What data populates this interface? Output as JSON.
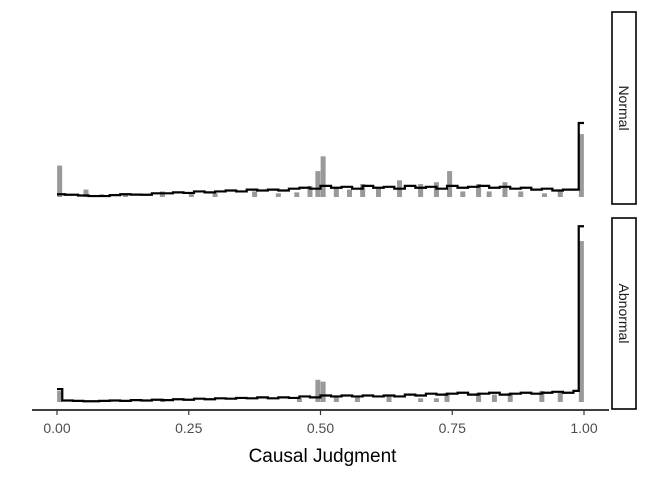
{
  "chart_data": {
    "type": "histogram",
    "xlabel": "Causal Judgment",
    "xlim": [
      0,
      1
    ],
    "x_ticks": [
      {
        "value": 0.0,
        "label": "0.00"
      },
      {
        "value": 0.25,
        "label": "0.25"
      },
      {
        "value": 0.5,
        "label": "0.50"
      },
      {
        "value": 0.75,
        "label": "0.75"
      },
      {
        "value": 1.0,
        "label": "1.00"
      }
    ],
    "y_axis_shown": false,
    "colors": {
      "bars": "#999999",
      "step_line": "#000000",
      "strip_border": "#000000"
    },
    "panels": [
      {
        "label": "Normal",
        "ylim": [
          0,
          1
        ],
        "bars": [
          [
            0.005,
            0.17
          ],
          [
            0.055,
            0.04
          ],
          [
            0.085,
            0.015
          ],
          [
            0.13,
            0.02
          ],
          [
            0.2,
            0.03
          ],
          [
            0.255,
            0.025
          ],
          [
            0.3,
            0.02
          ],
          [
            0.375,
            0.03
          ],
          [
            0.42,
            0.02
          ],
          [
            0.455,
            0.025
          ],
          [
            0.48,
            0.06
          ],
          [
            0.495,
            0.14
          ],
          [
            0.505,
            0.22
          ],
          [
            0.53,
            0.05
          ],
          [
            0.555,
            0.04
          ],
          [
            0.58,
            0.07
          ],
          [
            0.61,
            0.05
          ],
          [
            0.65,
            0.09
          ],
          [
            0.69,
            0.07
          ],
          [
            0.72,
            0.08
          ],
          [
            0.745,
            0.14
          ],
          [
            0.77,
            0.03
          ],
          [
            0.8,
            0.07
          ],
          [
            0.82,
            0.03
          ],
          [
            0.85,
            0.08
          ],
          [
            0.88,
            0.03
          ],
          [
            0.925,
            0.02
          ],
          [
            0.955,
            0.03
          ],
          [
            0.995,
            0.34
          ]
        ],
        "step": [
          [
            0.0,
            0.015
          ],
          [
            0.005,
            0.015
          ],
          [
            0.01,
            0.015
          ],
          [
            0.015,
            0.012
          ],
          [
            0.04,
            0.008
          ],
          [
            0.06,
            0.005
          ],
          [
            0.08,
            0.005
          ],
          [
            0.1,
            0.01
          ],
          [
            0.12,
            0.015
          ],
          [
            0.14,
            0.013
          ],
          [
            0.16,
            0.012
          ],
          [
            0.18,
            0.02
          ],
          [
            0.2,
            0.02
          ],
          [
            0.22,
            0.025
          ],
          [
            0.24,
            0.022
          ],
          [
            0.26,
            0.03
          ],
          [
            0.28,
            0.025
          ],
          [
            0.3,
            0.03
          ],
          [
            0.32,
            0.035
          ],
          [
            0.34,
            0.03
          ],
          [
            0.36,
            0.04
          ],
          [
            0.38,
            0.035
          ],
          [
            0.4,
            0.04
          ],
          [
            0.42,
            0.035
          ],
          [
            0.44,
            0.045
          ],
          [
            0.46,
            0.05
          ],
          [
            0.48,
            0.045
          ],
          [
            0.5,
            0.06
          ],
          [
            0.52,
            0.05
          ],
          [
            0.54,
            0.055
          ],
          [
            0.56,
            0.045
          ],
          [
            0.58,
            0.06
          ],
          [
            0.6,
            0.05
          ],
          [
            0.62,
            0.055
          ],
          [
            0.64,
            0.045
          ],
          [
            0.66,
            0.06
          ],
          [
            0.68,
            0.05
          ],
          [
            0.7,
            0.055
          ],
          [
            0.72,
            0.045
          ],
          [
            0.74,
            0.06
          ],
          [
            0.76,
            0.05
          ],
          [
            0.78,
            0.055
          ],
          [
            0.8,
            0.06
          ],
          [
            0.82,
            0.05
          ],
          [
            0.84,
            0.055
          ],
          [
            0.86,
            0.045
          ],
          [
            0.88,
            0.05
          ],
          [
            0.9,
            0.04
          ],
          [
            0.92,
            0.045
          ],
          [
            0.94,
            0.035
          ],
          [
            0.96,
            0.04
          ],
          [
            0.98,
            0.04
          ],
          [
            0.99,
            0.4
          ],
          [
            1.0,
            0.4
          ]
        ]
      },
      {
        "label": "Abnormal",
        "ylim": [
          0,
          1
        ],
        "bars": [
          [
            0.005,
            0.06
          ],
          [
            0.2,
            0.01
          ],
          [
            0.46,
            0.02
          ],
          [
            0.495,
            0.12
          ],
          [
            0.505,
            0.11
          ],
          [
            0.53,
            0.03
          ],
          [
            0.57,
            0.03
          ],
          [
            0.63,
            0.04
          ],
          [
            0.69,
            0.02
          ],
          [
            0.72,
            0.02
          ],
          [
            0.74,
            0.05
          ],
          [
            0.8,
            0.05
          ],
          [
            0.83,
            0.04
          ],
          [
            0.86,
            0.05
          ],
          [
            0.92,
            0.06
          ],
          [
            0.955,
            0.05
          ],
          [
            0.995,
            0.87
          ]
        ],
        "step": [
          [
            0.0,
            0.07
          ],
          [
            0.005,
            0.07
          ],
          [
            0.01,
            0.008
          ],
          [
            0.03,
            0.006
          ],
          [
            0.05,
            0.004
          ],
          [
            0.08,
            0.006
          ],
          [
            0.1,
            0.008
          ],
          [
            0.12,
            0.006
          ],
          [
            0.14,
            0.01
          ],
          [
            0.16,
            0.008
          ],
          [
            0.18,
            0.012
          ],
          [
            0.2,
            0.01
          ],
          [
            0.22,
            0.015
          ],
          [
            0.24,
            0.012
          ],
          [
            0.26,
            0.018
          ],
          [
            0.28,
            0.015
          ],
          [
            0.3,
            0.02
          ],
          [
            0.32,
            0.018
          ],
          [
            0.34,
            0.022
          ],
          [
            0.36,
            0.02
          ],
          [
            0.38,
            0.025
          ],
          [
            0.4,
            0.02
          ],
          [
            0.42,
            0.025
          ],
          [
            0.44,
            0.022
          ],
          [
            0.46,
            0.03
          ],
          [
            0.48,
            0.025
          ],
          [
            0.5,
            0.035
          ],
          [
            0.52,
            0.03
          ],
          [
            0.54,
            0.035
          ],
          [
            0.56,
            0.03
          ],
          [
            0.58,
            0.035
          ],
          [
            0.6,
            0.03
          ],
          [
            0.62,
            0.035
          ],
          [
            0.64,
            0.03
          ],
          [
            0.66,
            0.04
          ],
          [
            0.68,
            0.035
          ],
          [
            0.7,
            0.045
          ],
          [
            0.72,
            0.04
          ],
          [
            0.74,
            0.045
          ],
          [
            0.76,
            0.05
          ],
          [
            0.78,
            0.04
          ],
          [
            0.8,
            0.045
          ],
          [
            0.82,
            0.05
          ],
          [
            0.84,
            0.04
          ],
          [
            0.86,
            0.045
          ],
          [
            0.88,
            0.05
          ],
          [
            0.9,
            0.045
          ],
          [
            0.92,
            0.05
          ],
          [
            0.94,
            0.055
          ],
          [
            0.96,
            0.05
          ],
          [
            0.98,
            0.06
          ],
          [
            0.99,
            0.95
          ],
          [
            1.0,
            0.95
          ]
        ]
      }
    ]
  }
}
